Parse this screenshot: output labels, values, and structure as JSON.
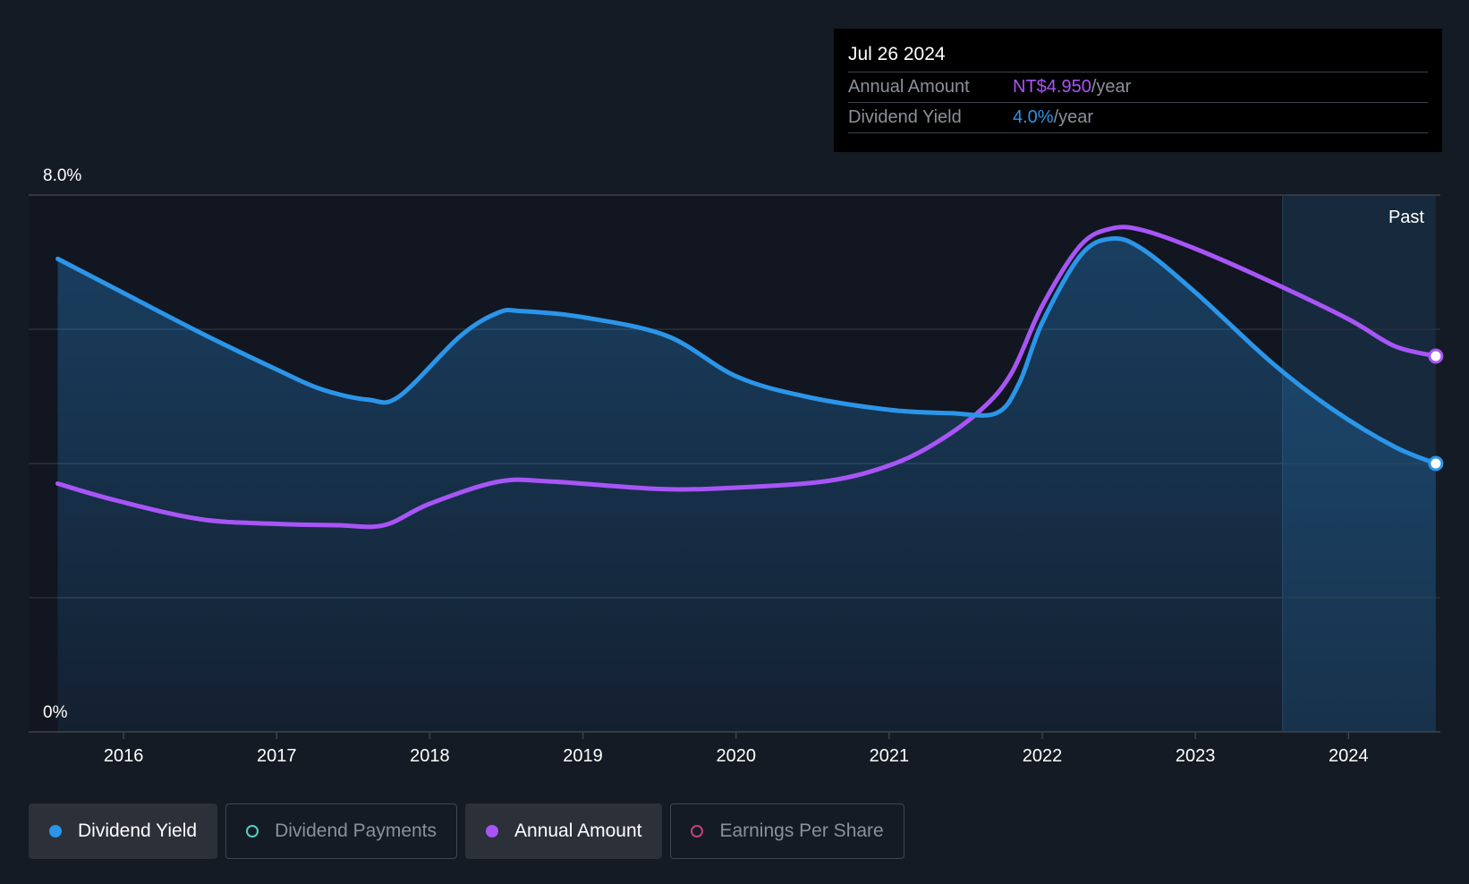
{
  "tooltip": {
    "date": "Jul 26 2024",
    "rows": [
      {
        "label": "Annual Amount",
        "value": "NT$4.950",
        "unit": "/year"
      },
      {
        "label": "Dividend Yield",
        "value": "4.0%",
        "unit": "/year"
      }
    ]
  },
  "legend": [
    {
      "label": "Dividend Yield",
      "color": "#2b95e9",
      "active": true
    },
    {
      "label": "Dividend Payments",
      "color": "#4fd1c5",
      "active": false
    },
    {
      "label": "Annual Amount",
      "color": "#a855f7",
      "active": true
    },
    {
      "label": "Earnings Per Share",
      "color": "#c2417a",
      "active": false
    }
  ],
  "chart_data": {
    "type": "line",
    "title": "",
    "ylabel": "",
    "xlabel": "",
    "ylim": [
      0,
      8
    ],
    "y_tick_labels": [
      "8.0%",
      "0%"
    ],
    "x_ticks": [
      2016,
      2017,
      2018,
      2019,
      2020,
      2021,
      2022,
      2023,
      2024
    ],
    "x_tick_labels": [
      "2016",
      "2017",
      "2018",
      "2019",
      "2020",
      "2021",
      "2022",
      "2023",
      "2024"
    ],
    "xlim": [
      2015.38,
      2024.6
    ],
    "past_region": {
      "start": 2023.57,
      "end": 2024.57,
      "label": "Past"
    },
    "grid": true,
    "series": [
      {
        "name": "Dividend Yield",
        "color": "#2b95e9",
        "area": true,
        "end_marker": true,
        "x": [
          2015.57,
          2015.95,
          2016.5,
          2017.0,
          2017.3,
          2017.6,
          2017.8,
          2018.2,
          2018.45,
          2018.6,
          2019.0,
          2019.55,
          2020.0,
          2020.45,
          2021.0,
          2021.4,
          2021.7,
          2021.85,
          2022.0,
          2022.25,
          2022.45,
          2022.65,
          2023.0,
          2023.5,
          2023.9,
          2024.3,
          2024.57
        ],
        "values": [
          7.05,
          6.6,
          5.95,
          5.4,
          5.1,
          4.95,
          5.0,
          5.9,
          6.25,
          6.27,
          6.18,
          5.9,
          5.3,
          5.0,
          4.8,
          4.75,
          4.75,
          5.2,
          6.1,
          7.1,
          7.35,
          7.2,
          6.55,
          5.5,
          4.8,
          4.25,
          4.0
        ]
      },
      {
        "name": "Annual Amount",
        "color": "#a855f7",
        "area": false,
        "end_marker": true,
        "x": [
          2015.57,
          2015.95,
          2016.5,
          2017.0,
          2017.4,
          2017.7,
          2018.0,
          2018.45,
          2018.8,
          2019.5,
          2020.0,
          2020.6,
          2021.0,
          2021.3,
          2021.6,
          2021.8,
          2022.0,
          2022.25,
          2022.45,
          2022.65,
          2023.0,
          2023.5,
          2024.0,
          2024.3,
          2024.57
        ],
        "values": [
          3.7,
          3.45,
          3.17,
          3.1,
          3.08,
          3.08,
          3.4,
          3.73,
          3.73,
          3.62,
          3.64,
          3.74,
          3.97,
          4.3,
          4.8,
          5.35,
          6.35,
          7.25,
          7.5,
          7.48,
          7.2,
          6.7,
          6.15,
          5.75,
          5.6
        ]
      }
    ]
  }
}
